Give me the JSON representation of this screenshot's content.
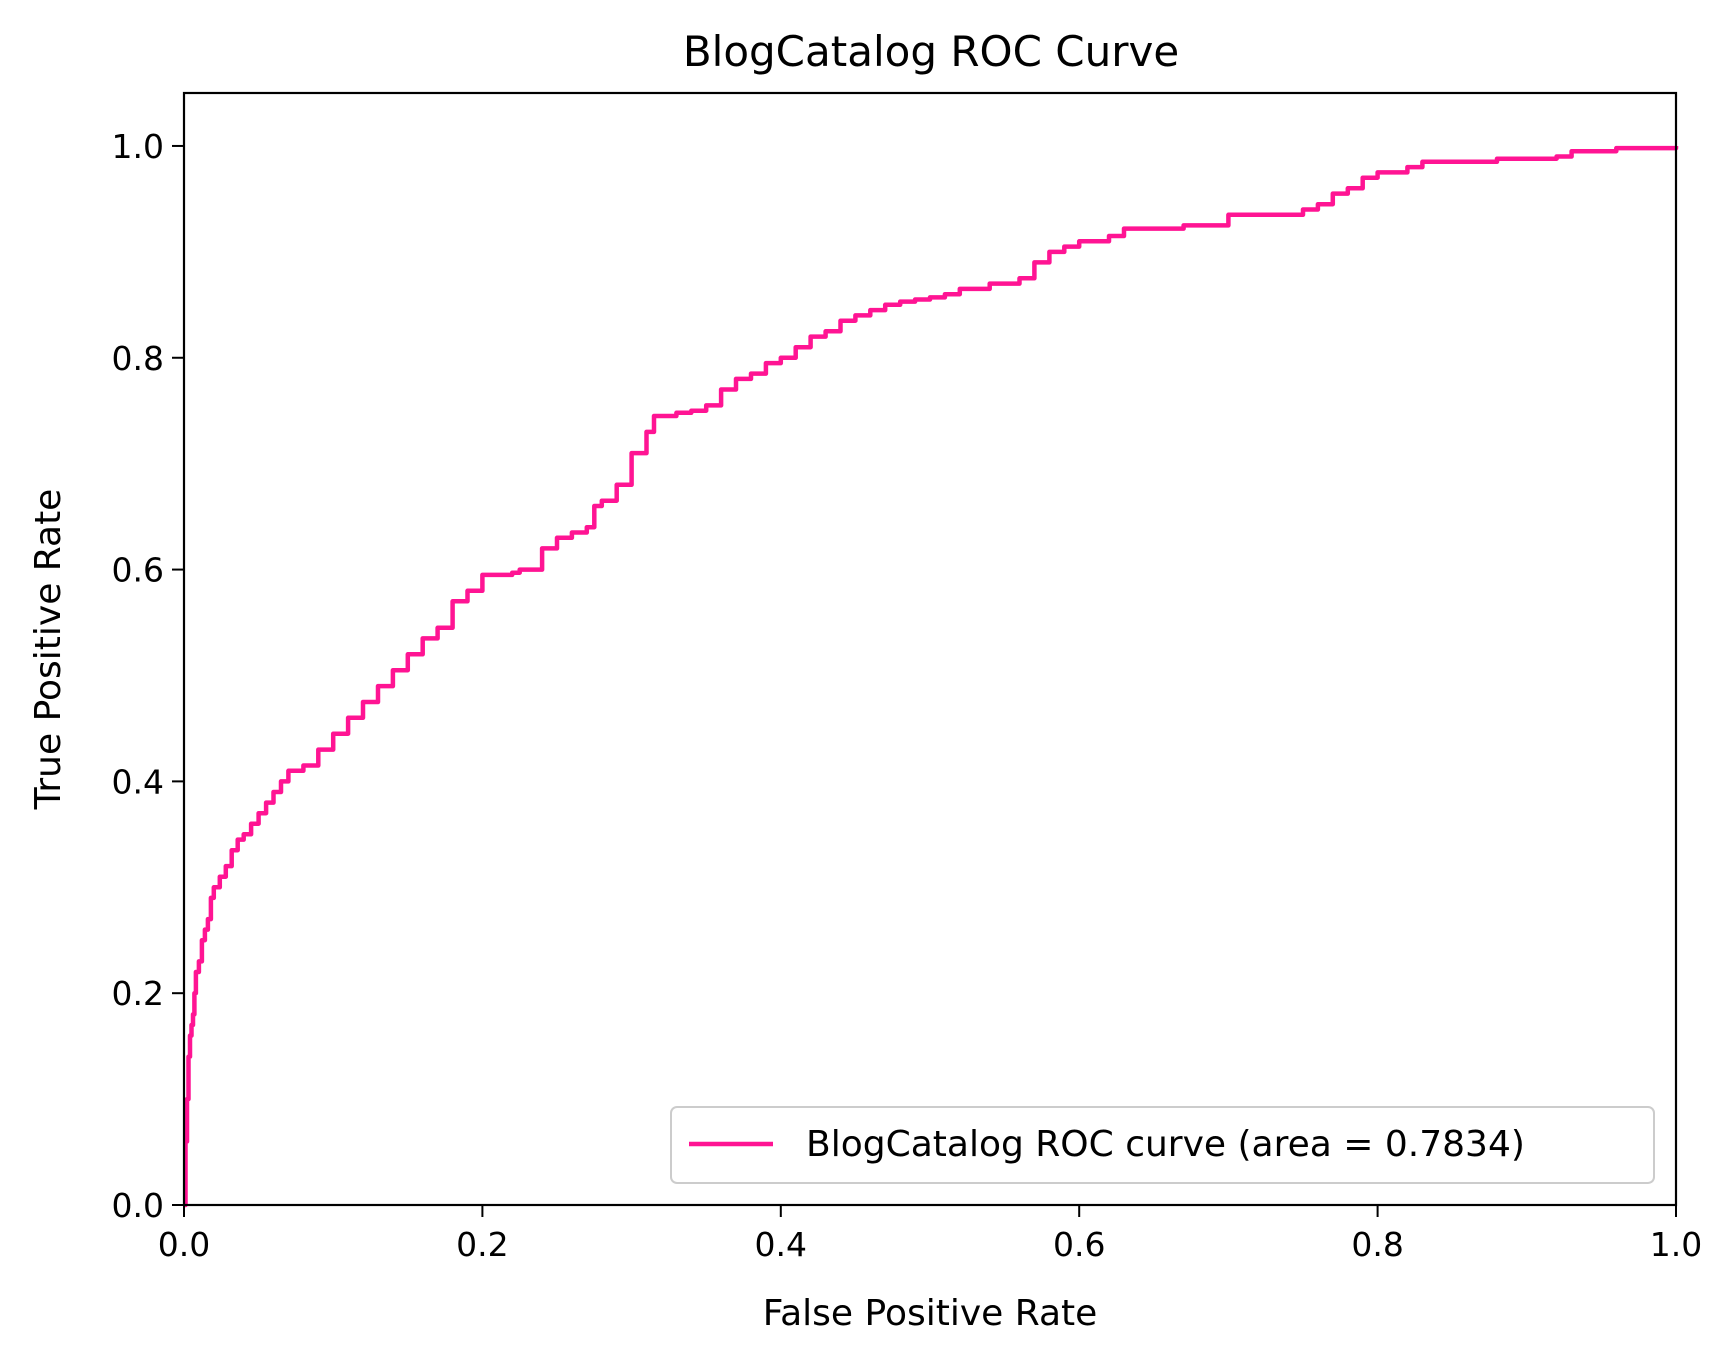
{
  "chart_data": {
    "type": "line",
    "title": "BlogCatalog ROC Curve",
    "xlabel": "False Positive Rate",
    "ylabel": "True Positive Rate",
    "xlim": [
      0.0,
      1.0
    ],
    "ylim": [
      0.0,
      1.05
    ],
    "xticks": [
      "0.0",
      "0.2",
      "0.4",
      "0.6",
      "0.8",
      "1.0"
    ],
    "yticks": [
      "0.0",
      "0.2",
      "0.4",
      "0.6",
      "0.8",
      "1.0"
    ],
    "grid": false,
    "legend_position": "lower-right",
    "series": [
      {
        "name": "BlogCatalog ROC curve (area = 0.7834)",
        "color": "#ff1493",
        "x": [
          0.0,
          0.001,
          0.002,
          0.003,
          0.004,
          0.005,
          0.006,
          0.007,
          0.008,
          0.01,
          0.012,
          0.014,
          0.016,
          0.018,
          0.02,
          0.024,
          0.028,
          0.032,
          0.036,
          0.04,
          0.045,
          0.05,
          0.055,
          0.06,
          0.065,
          0.07,
          0.08,
          0.09,
          0.1,
          0.11,
          0.12,
          0.13,
          0.14,
          0.15,
          0.16,
          0.17,
          0.18,
          0.19,
          0.2,
          0.22,
          0.225,
          0.24,
          0.25,
          0.26,
          0.27,
          0.275,
          0.28,
          0.29,
          0.3,
          0.31,
          0.315,
          0.33,
          0.34,
          0.35,
          0.36,
          0.37,
          0.38,
          0.39,
          0.4,
          0.41,
          0.42,
          0.43,
          0.44,
          0.45,
          0.46,
          0.47,
          0.48,
          0.49,
          0.5,
          0.51,
          0.52,
          0.54,
          0.56,
          0.57,
          0.58,
          0.59,
          0.6,
          0.62,
          0.63,
          0.67,
          0.7,
          0.75,
          0.76,
          0.77,
          0.78,
          0.79,
          0.8,
          0.82,
          0.83,
          0.88,
          0.92,
          0.93,
          0.96,
          1.0
        ],
        "y": [
          0.0,
          0.06,
          0.1,
          0.14,
          0.16,
          0.17,
          0.18,
          0.2,
          0.22,
          0.23,
          0.25,
          0.26,
          0.27,
          0.29,
          0.3,
          0.31,
          0.32,
          0.335,
          0.345,
          0.35,
          0.36,
          0.37,
          0.38,
          0.39,
          0.4,
          0.41,
          0.415,
          0.43,
          0.445,
          0.46,
          0.475,
          0.49,
          0.505,
          0.52,
          0.535,
          0.545,
          0.57,
          0.58,
          0.595,
          0.597,
          0.6,
          0.62,
          0.63,
          0.635,
          0.64,
          0.66,
          0.665,
          0.68,
          0.71,
          0.73,
          0.745,
          0.748,
          0.75,
          0.755,
          0.77,
          0.78,
          0.785,
          0.795,
          0.8,
          0.81,
          0.82,
          0.825,
          0.835,
          0.84,
          0.845,
          0.85,
          0.853,
          0.855,
          0.857,
          0.86,
          0.865,
          0.87,
          0.875,
          0.89,
          0.9,
          0.905,
          0.91,
          0.915,
          0.922,
          0.925,
          0.935,
          0.94,
          0.945,
          0.955,
          0.96,
          0.97,
          0.975,
          0.98,
          0.985,
          0.988,
          0.99,
          0.995,
          0.998,
          1.0
        ]
      }
    ]
  }
}
